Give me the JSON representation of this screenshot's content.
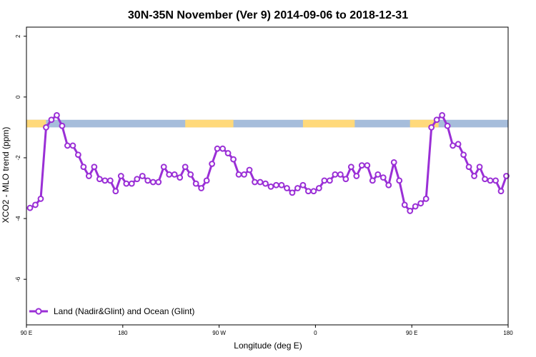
{
  "chart_data": {
    "type": "line",
    "title": "30N-35N November (Ver 9)   2014-09-06 to 2018-12-31",
    "xlabel": "Longitude (deg E)",
    "ylabel": "XCO2 - MLO trend (ppm)",
    "xlim": [
      -90,
      180
    ],
    "ylim": [
      -7.5,
      2.3
    ],
    "x_ticks": [
      {
        "value": -90,
        "label": "90 E"
      },
      {
        "value": -36,
        "label": "180"
      },
      {
        "value": 18,
        "label": "90 W"
      },
      {
        "value": 72,
        "label": "0"
      },
      {
        "value": 126,
        "label": "90 E"
      },
      {
        "value": 180,
        "label": "180"
      }
    ],
    "y_ticks": [
      {
        "value": 2,
        "label": "2"
      },
      {
        "value": 0,
        "label": "0"
      },
      {
        "value": -2,
        "label": "-2"
      },
      {
        "value": -4,
        "label": "-4"
      },
      {
        "value": -6,
        "label": "-6"
      }
    ],
    "grid": false,
    "legend": {
      "position": "bottom-left"
    },
    "land_ocean_band": {
      "y_top": -0.75,
      "y_bottom": -1.0,
      "ocean_color": "#a6bddb",
      "land_color": "#ffd97a",
      "land_segments": [
        [
          -90,
          -79
        ],
        [
          -1,
          26
        ],
        [
          65,
          94
        ],
        [
          125,
          141
        ]
      ]
    },
    "series": [
      {
        "name": "Land (Nadir&Glint) and Ocean (Glint)",
        "color": "#9a2fd6",
        "x": [
          -88,
          -85,
          -82,
          -79,
          -76,
          -73,
          -70,
          -67,
          -64,
          -61,
          -58,
          -55,
          -52,
          -49,
          -46,
          -43,
          -40,
          -37,
          -34,
          -31,
          -28,
          -25,
          -22,
          -19,
          -16,
          -13,
          -10,
          -7,
          -4,
          -1,
          2,
          5,
          8,
          11,
          14,
          17,
          20,
          23,
          26,
          29,
          32,
          35,
          38,
          41,
          44,
          47,
          50,
          53,
          56,
          59,
          62,
          65,
          68,
          71,
          74,
          77,
          80,
          83,
          86,
          89,
          92,
          95,
          98,
          101,
          104,
          107,
          110,
          113,
          116,
          119,
          122,
          125,
          128,
          131,
          134,
          137,
          140,
          143,
          146,
          149,
          152,
          155,
          158,
          161,
          164,
          167,
          170,
          173,
          176,
          179
        ],
        "y": [
          -3.65,
          -3.55,
          -3.35,
          -1.0,
          -0.75,
          -0.6,
          -0.95,
          -1.6,
          -1.6,
          -1.9,
          -2.3,
          -2.6,
          -2.3,
          -2.7,
          -2.75,
          -2.75,
          -3.1,
          -2.6,
          -2.85,
          -2.85,
          -2.7,
          -2.6,
          -2.75,
          -2.8,
          -2.8,
          -2.3,
          -2.55,
          -2.55,
          -2.65,
          -2.3,
          -2.55,
          -2.85,
          -3.0,
          -2.75,
          -2.2,
          -1.7,
          -1.7,
          -1.85,
          -2.05,
          -2.55,
          -2.55,
          -2.4,
          -2.8,
          -2.8,
          -2.85,
          -2.95,
          -2.9,
          -2.9,
          -3.0,
          -3.15,
          -3.0,
          -2.9,
          -3.1,
          -3.1,
          -3.0,
          -2.75,
          -2.75,
          -2.55,
          -2.55,
          -2.7,
          -2.3,
          -2.6,
          -2.25,
          -2.25,
          -2.75,
          -2.55,
          -2.65,
          -2.9,
          -2.15,
          -2.75,
          -3.55,
          -3.75,
          -3.6,
          -3.5,
          -3.35,
          -1.0,
          -0.75,
          -0.6,
          -0.95,
          -1.6,
          -1.55,
          -1.9,
          -2.3,
          -2.6,
          -2.3,
          -2.7,
          -2.75,
          -2.75,
          -3.1,
          -2.6
        ]
      }
    ]
  }
}
